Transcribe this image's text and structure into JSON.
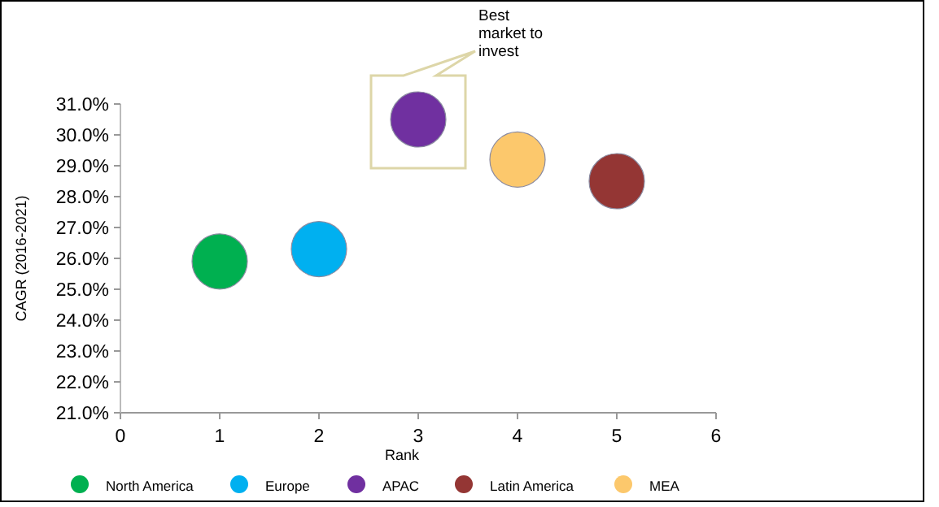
{
  "chart_data": {
    "type": "scatter",
    "xlabel": "Rank",
    "ylabel": "CAGR (2016-2021)",
    "xlim": [
      0,
      6
    ],
    "xticks": [
      0,
      1,
      2,
      3,
      4,
      5,
      6
    ],
    "ylim": [
      21,
      31
    ],
    "yticks": [
      {
        "value": 21,
        "label": "21.0%"
      },
      {
        "value": 22,
        "label": "22.0%"
      },
      {
        "value": 23,
        "label": "23.0%"
      },
      {
        "value": 24,
        "label": "24.0%"
      },
      {
        "value": 25,
        "label": "25.0%"
      },
      {
        "value": 26,
        "label": "26.0%"
      },
      {
        "value": 27,
        "label": "27.0%"
      },
      {
        "value": 28,
        "label": "28.0%"
      },
      {
        "value": 29,
        "label": "29.0%"
      },
      {
        "value": 30,
        "label": "30.0%"
      },
      {
        "value": 31,
        "label": "31.0%"
      }
    ],
    "series": [
      {
        "name": "North America",
        "color": "#00b050",
        "x": [
          1
        ],
        "values": [
          25.9
        ]
      },
      {
        "name": "Europe",
        "color": "#00b0f0",
        "x": [
          2
        ],
        "values": [
          26.3
        ]
      },
      {
        "name": "APAC",
        "color": "#7030a0",
        "x": [
          3
        ],
        "values": [
          30.5
        ]
      },
      {
        "name": "Latin America",
        "color": "#943634",
        "x": [
          5
        ],
        "values": [
          28.5
        ]
      },
      {
        "name": "MEA",
        "color": "#fcc86c",
        "x": [
          4
        ],
        "values": [
          29.2
        ]
      }
    ],
    "marker": "circle",
    "legend": "bottom",
    "grid": false,
    "annotations": [
      "Best market to invest"
    ]
  }
}
